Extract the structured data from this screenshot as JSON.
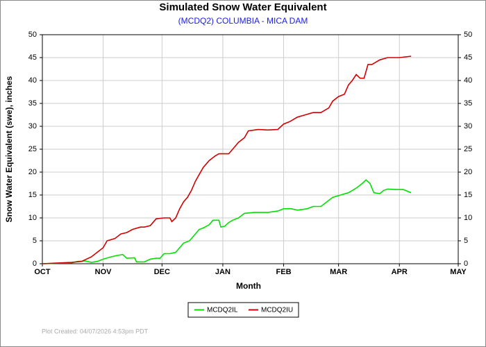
{
  "chart_data": {
    "type": "line",
    "title": "Simulated Snow Water Equivalent",
    "subtitle": "(MCDQ2) COLUMBIA - MICA DAM",
    "x_label": "Month",
    "y_label": "Snow Water Equivalent (swe),  inches",
    "footer": "Plot Created: 04/07/2026 4:53pm PDT",
    "xlim": [
      0,
      212
    ],
    "xticks": [
      {
        "value": 0,
        "label": "OCT"
      },
      {
        "value": 31,
        "label": "NOV"
      },
      {
        "value": 61,
        "label": "DEC"
      },
      {
        "value": 92,
        "label": "JAN"
      },
      {
        "value": 123,
        "label": "FEB"
      },
      {
        "value": 151,
        "label": "MAR"
      },
      {
        "value": 182,
        "label": "APR"
      },
      {
        "value": 212,
        "label": "MAY"
      }
    ],
    "ylim": [
      0,
      50
    ],
    "yticks": [
      0,
      5,
      10,
      15,
      20,
      25,
      30,
      35,
      40,
      45,
      50
    ],
    "grid": true,
    "series": [
      {
        "name": "MCDQ2IL",
        "color": "#00e000",
        "x": [
          0,
          15,
          18,
          22,
          25,
          28,
          31,
          35,
          38,
          41,
          43,
          47,
          48,
          52,
          55,
          58,
          60,
          62,
          65,
          68,
          70,
          72,
          75,
          78,
          80,
          82,
          85,
          87,
          90,
          91,
          93,
          95,
          97,
          100,
          103,
          108,
          115,
          120,
          123,
          127,
          130,
          135,
          138,
          142,
          145,
          148,
          152,
          156,
          160,
          163,
          165,
          167,
          169,
          172,
          174,
          176,
          180,
          184,
          188
        ],
        "values": [
          0,
          0.2,
          0.5,
          0.6,
          0.3,
          0.5,
          1,
          1.5,
          1.8,
          2,
          1.2,
          1.3,
          0.4,
          0.4,
          1,
          1.2,
          1.2,
          2.2,
          2.2,
          2.5,
          3.5,
          4.5,
          5,
          6.5,
          7.5,
          7.8,
          8.5,
          9.5,
          9.5,
          8,
          8.2,
          9,
          9.5,
          10,
          11,
          11.2,
          11.2,
          11.5,
          12,
          12,
          11.7,
          12,
          12.5,
          12.5,
          13.5,
          14.5,
          15,
          15.5,
          16.5,
          17.5,
          18.3,
          17.5,
          15.5,
          15.3,
          16,
          16.3,
          16.2,
          16.2,
          15.5
        ]
      },
      {
        "name": "MCDQ2IU",
        "color": "#d00000",
        "x": [
          0,
          10,
          15,
          20,
          25,
          28,
          31,
          33,
          37,
          40,
          43,
          46,
          50,
          52,
          55,
          58,
          62,
          65,
          66,
          68,
          70,
          72,
          74,
          76,
          78,
          80,
          82,
          85,
          88,
          90,
          95,
          97,
          100,
          103,
          105,
          110,
          115,
          120,
          123,
          126,
          130,
          134,
          138,
          142,
          146,
          148,
          151,
          154,
          156,
          158,
          160,
          162,
          164,
          166,
          168,
          172,
          176,
          182,
          188
        ],
        "values": [
          0,
          0.2,
          0.3,
          0.5,
          1.5,
          2.5,
          3.5,
          5,
          5.5,
          6.5,
          6.8,
          7.5,
          8,
          8,
          8.3,
          9.8,
          10,
          10,
          9.2,
          10,
          12,
          13.5,
          14.5,
          16,
          18,
          19.5,
          21,
          22.5,
          23.5,
          24,
          24,
          25,
          26.5,
          27.5,
          29,
          29.3,
          29.2,
          29.3,
          30.5,
          31,
          32,
          32.5,
          33,
          33,
          34,
          35.5,
          36.5,
          37,
          39,
          40,
          41.3,
          40.5,
          40.5,
          43.5,
          43.5,
          44.5,
          45,
          45,
          45.3
        ]
      }
    ]
  }
}
